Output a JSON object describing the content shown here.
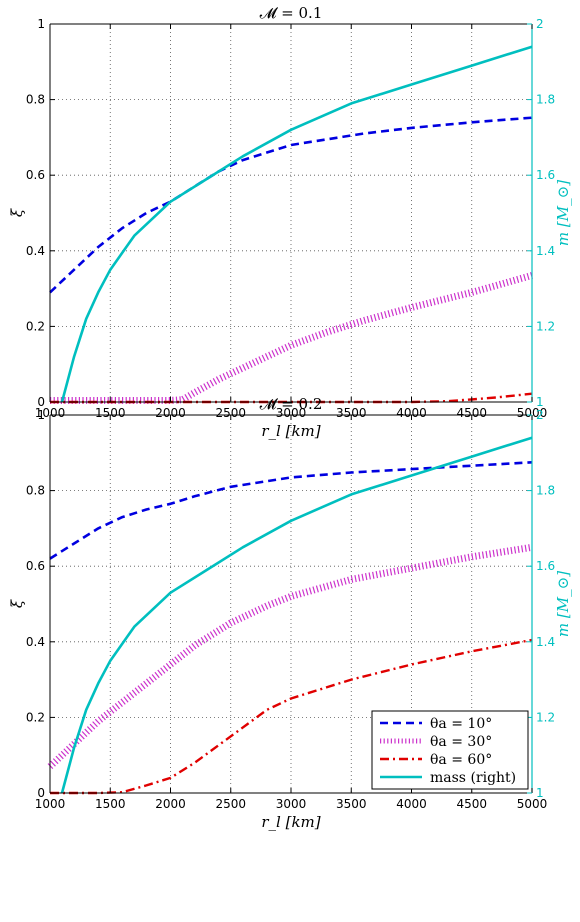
{
  "colors": {
    "theta10": "#0000e0",
    "theta30": "#cc33cc",
    "theta60": "#e00000",
    "mass": "#00bfbf",
    "grid": "#555555"
  },
  "chart_data": [
    {
      "type": "line",
      "title": "𝓜 = 0.1",
      "xlabel": "r_l [km]",
      "ylabel": "ξ",
      "ylabel_right": "m [M_⊙]",
      "xlim": [
        1000,
        5000
      ],
      "ylim": [
        0,
        1
      ],
      "ylim_right": [
        1,
        2
      ],
      "x_ticks": [
        "1000",
        "1500",
        "2000",
        "2500",
        "3000",
        "3500",
        "4000",
        "4500",
        "5000"
      ],
      "y_ticks": [
        "0",
        "0.2",
        "0.4",
        "0.6",
        "0.8",
        "1"
      ],
      "y_ticks_right": [
        "1",
        "1.2",
        "1.4",
        "1.6",
        "1.8",
        "2"
      ],
      "grid": true,
      "series": [
        {
          "key": "theta10",
          "axis": "left",
          "style": "dashed",
          "x": [
            1000,
            1200,
            1400,
            1600,
            1800,
            2000,
            2200,
            2400,
            2600,
            2800,
            3000,
            3300,
            3600,
            4000,
            4500,
            5000
          ],
          "y": [
            0.29,
            0.35,
            0.41,
            0.46,
            0.5,
            0.53,
            0.57,
            0.61,
            0.64,
            0.66,
            0.68,
            0.695,
            0.71,
            0.725,
            0.74,
            0.752
          ]
        },
        {
          "key": "theta30",
          "axis": "left",
          "style": "dotted",
          "x": [
            1000,
            1500,
            2000,
            2100,
            2200,
            2400,
            2600,
            2800,
            3000,
            3300,
            3600,
            4000,
            4500,
            5000
          ],
          "y": [
            0.004,
            0.004,
            0.004,
            0.006,
            0.025,
            0.06,
            0.09,
            0.12,
            0.15,
            0.185,
            0.215,
            0.25,
            0.29,
            0.335
          ]
        },
        {
          "key": "theta60",
          "axis": "left",
          "style": "dashdot",
          "x": [
            1000,
            2000,
            3000,
            4000,
            4300,
            4500,
            4700,
            5000
          ],
          "y": [
            0,
            0,
            0,
            0,
            0.002,
            0.007,
            0.012,
            0.022
          ]
        },
        {
          "key": "mass",
          "axis": "right",
          "style": "solid",
          "x": [
            1100,
            1200,
            1300,
            1400,
            1500,
            1700,
            2000,
            2300,
            2600,
            3000,
            3500,
            4000,
            4500,
            5000
          ],
          "y": [
            1.0,
            1.12,
            1.22,
            1.29,
            1.35,
            1.44,
            1.53,
            1.59,
            1.65,
            1.72,
            1.79,
            1.84,
            1.89,
            1.94
          ]
        }
      ]
    },
    {
      "type": "line",
      "title": "𝓜 = 0.2",
      "xlabel": "r_l [km]",
      "ylabel": "ξ",
      "ylabel_right": "m [M_⊙]",
      "xlim": [
        1000,
        5000
      ],
      "ylim": [
        0,
        1
      ],
      "ylim_right": [
        1,
        2
      ],
      "x_ticks": [
        "1000",
        "1500",
        "2000",
        "2500",
        "3000",
        "3500",
        "4000",
        "4500",
        "5000"
      ],
      "y_ticks": [
        "0",
        "0.2",
        "0.4",
        "0.6",
        "0.8",
        "1"
      ],
      "y_ticks_right": [
        "1",
        "1.2",
        "1.4",
        "1.6",
        "1.8",
        "2"
      ],
      "grid": true,
      "legend": {
        "placement": "bottom-right",
        "entries": [
          {
            "key": "theta10",
            "label": "θa = 10°",
            "style": "dashed"
          },
          {
            "key": "theta30",
            "label": "θa = 30°",
            "style": "dotted"
          },
          {
            "key": "theta60",
            "label": "θa = 60°",
            "style": "dashdot"
          },
          {
            "key": "mass",
            "label": "mass (right)",
            "style": "solid"
          }
        ]
      },
      "series": [
        {
          "key": "theta10",
          "axis": "left",
          "style": "dashed",
          "x": [
            1000,
            1200,
            1400,
            1600,
            1800,
            2000,
            2200,
            2500,
            2800,
            3000,
            3500,
            4000,
            4500,
            5000
          ],
          "y": [
            0.62,
            0.66,
            0.7,
            0.73,
            0.75,
            0.765,
            0.785,
            0.81,
            0.825,
            0.835,
            0.848,
            0.857,
            0.866,
            0.875
          ]
        },
        {
          "key": "theta30",
          "axis": "left",
          "style": "dotted",
          "x": [
            1000,
            1200,
            1400,
            1600,
            1800,
            2000,
            2200,
            2500,
            2800,
            3000,
            3500,
            4000,
            4500,
            5000
          ],
          "y": [
            0.07,
            0.13,
            0.19,
            0.24,
            0.29,
            0.34,
            0.39,
            0.45,
            0.495,
            0.52,
            0.565,
            0.595,
            0.625,
            0.65
          ]
        },
        {
          "key": "theta60",
          "axis": "left",
          "style": "dashdot",
          "x": [
            1000,
            1400,
            1600,
            1800,
            2000,
            2200,
            2500,
            2800,
            3000,
            3500,
            4000,
            4500,
            5000
          ],
          "y": [
            0,
            0,
            0.002,
            0.02,
            0.04,
            0.08,
            0.15,
            0.22,
            0.25,
            0.3,
            0.34,
            0.375,
            0.405
          ]
        },
        {
          "key": "mass",
          "axis": "right",
          "style": "solid",
          "x": [
            1100,
            1200,
            1300,
            1400,
            1500,
            1700,
            2000,
            2300,
            2600,
            3000,
            3500,
            4000,
            4500,
            5000
          ],
          "y": [
            1.0,
            1.12,
            1.22,
            1.29,
            1.35,
            1.44,
            1.53,
            1.59,
            1.65,
            1.72,
            1.79,
            1.84,
            1.89,
            1.94
          ]
        }
      ]
    }
  ]
}
